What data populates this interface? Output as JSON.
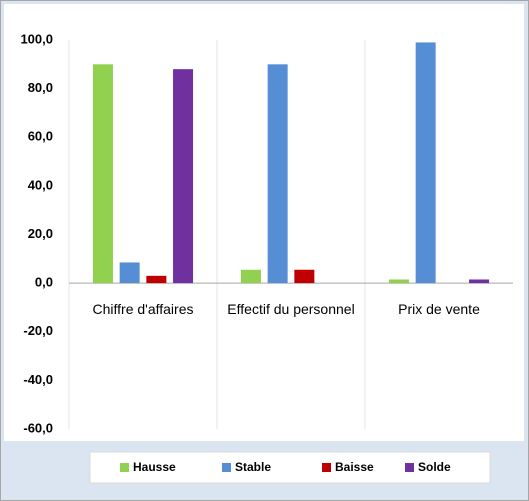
{
  "chart_data": {
    "type": "bar",
    "categories": [
      "Chiffre d'affaires",
      "Effectif du personnel",
      "Prix de vente"
    ],
    "series": [
      {
        "name": "Hausse",
        "color": "#92d050",
        "values": [
          90,
          5.5,
          1.5
        ]
      },
      {
        "name": "Stable",
        "color": "#558ed5",
        "values": [
          8.5,
          90,
          99
        ]
      },
      {
        "name": "Baisse",
        "color": "#c00000",
        "values": [
          3,
          5.5,
          0
        ]
      },
      {
        "name": "Solde",
        "color": "#7030a0",
        "values": [
          88,
          0,
          1.5
        ]
      }
    ],
    "ylim": [
      -60,
      100
    ],
    "yticks": [
      {
        "value": -60,
        "label": "-60,0"
      },
      {
        "value": -40,
        "label": "-40,0"
      },
      {
        "value": -20,
        "label": "-20,0"
      },
      {
        "value": 0,
        "label": "0,0"
      },
      {
        "value": 20,
        "label": "20,0"
      },
      {
        "value": 40,
        "label": "40,0"
      },
      {
        "value": 60,
        "label": "60,0"
      },
      {
        "value": 80,
        "label": "80,0"
      },
      {
        "value": 100,
        "label": "100,0"
      }
    ],
    "grid": false,
    "legend": "bottom"
  }
}
